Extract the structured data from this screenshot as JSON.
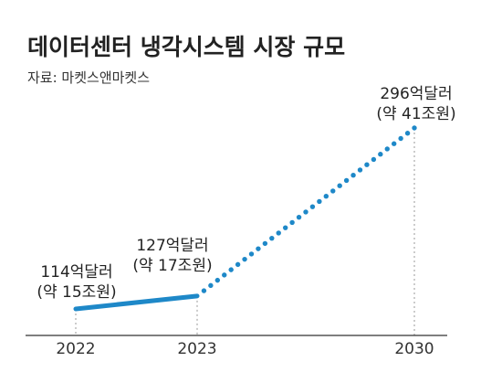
{
  "chart_data": {
    "type": "line",
    "title": "데이터센터 냉각시스템 시장 규모",
    "source": "자료: 마켓스앤마켓스",
    "x": [
      2022,
      2023,
      2030
    ],
    "tick_labels": [
      "2022",
      "2023",
      "2030"
    ],
    "series": [
      {
        "values": [
          114,
          127,
          296
        ]
      }
    ],
    "segments": [
      {
        "from": 2022,
        "to": 2023,
        "style": "solid"
      },
      {
        "from": 2023,
        "to": 2030,
        "style": "dotted"
      }
    ],
    "labels": [
      {
        "x": 2022,
        "line1": "114억달러",
        "line2": "(약 15조원)"
      },
      {
        "x": 2023,
        "line1": "127억달러",
        "line2": "(약 17조원)"
      },
      {
        "x": 2030,
        "line1": "296억달러",
        "line2": "(약 41조원)"
      }
    ],
    "grid": false,
    "legend": "none",
    "colors": {
      "line": "#1e88c8",
      "axis": "#333333",
      "guide": "#999999"
    }
  }
}
